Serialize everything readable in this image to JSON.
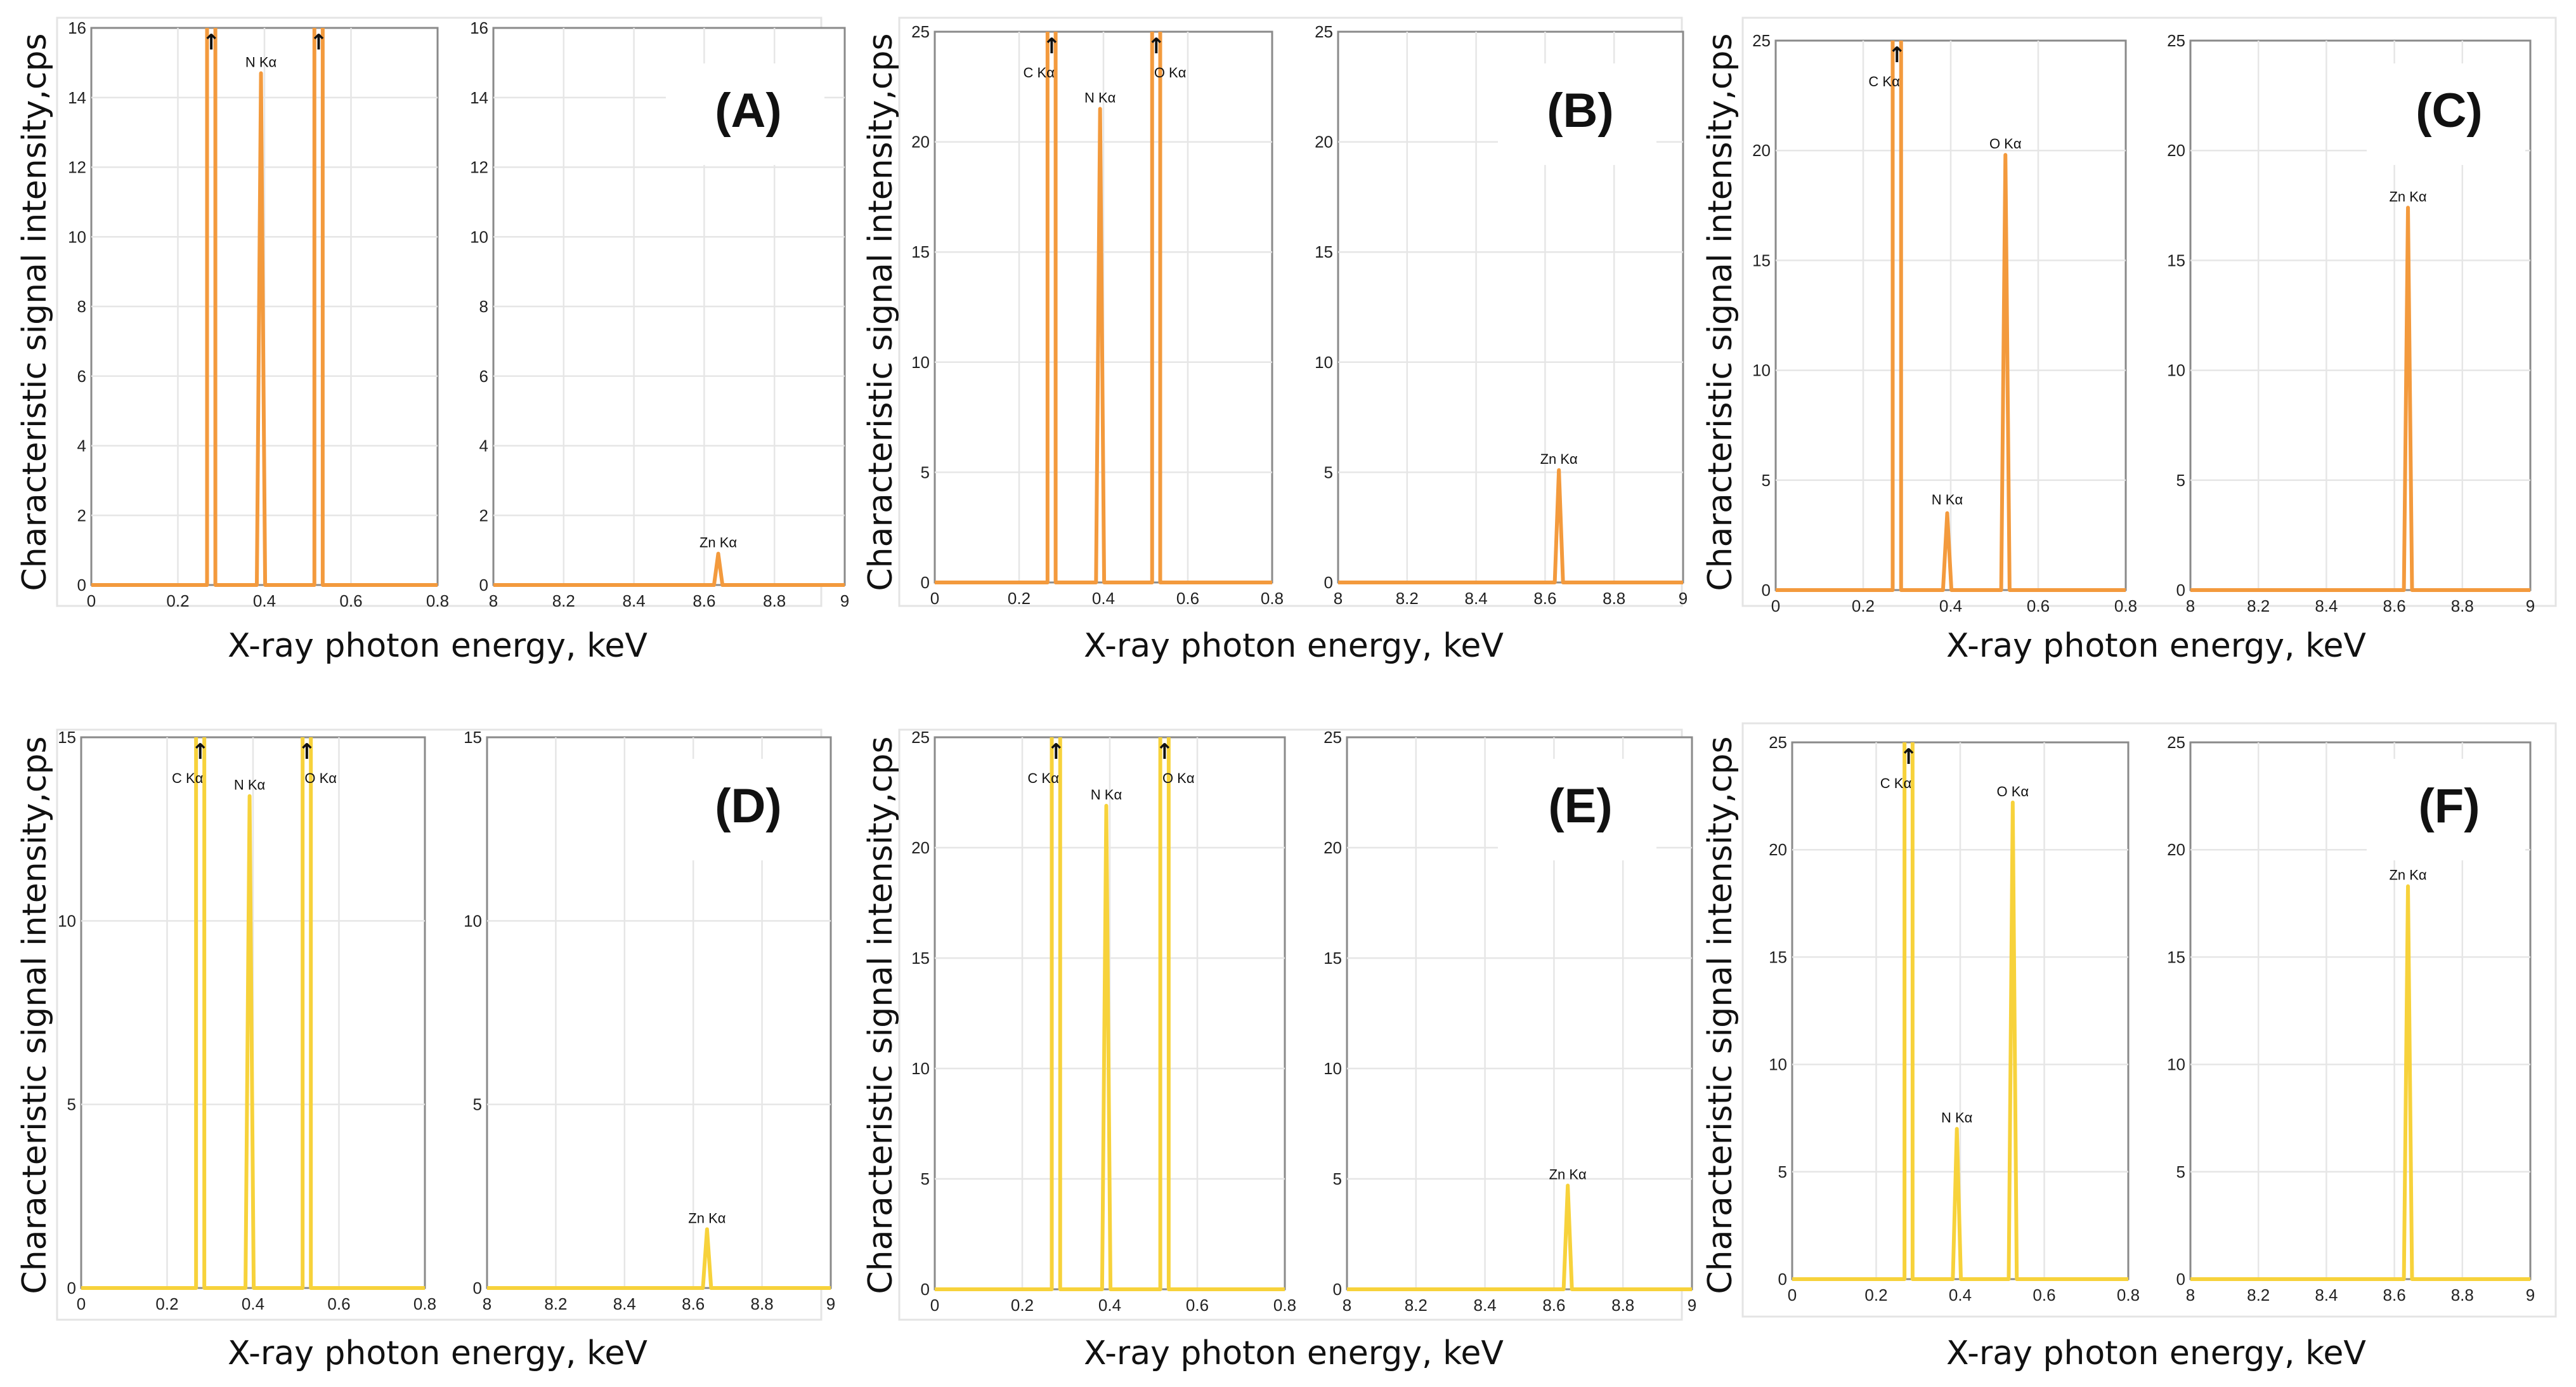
{
  "colors": {
    "orange": "#F39A3D",
    "yellow": "#F7D23B"
  },
  "chart_data": [
    {
      "panel": "(A)",
      "type": "line",
      "color": "#F39A3D",
      "xlabel": "X-ray photon energy, keV",
      "ylabel": "Characteristic signal intensity,cps",
      "left": {
        "xlim": [
          0,
          0.8
        ],
        "ylim": [
          0,
          16
        ],
        "xticks": [
          "0",
          "0.2",
          "0.4",
          "0.6",
          "0.8"
        ],
        "yticks": [
          "0",
          "2",
          "4",
          "6",
          "8",
          "10",
          "12",
          "14",
          "16"
        ],
        "peaks": [
          {
            "x": 0.277,
            "y": 16,
            "label": "",
            "clipped": true
          },
          {
            "x": 0.392,
            "y": 14.7,
            "label": "N Kα",
            "clipped": false
          },
          {
            "x": 0.525,
            "y": 16,
            "label": "",
            "clipped": true
          }
        ]
      },
      "right": {
        "xlim": [
          8,
          9
        ],
        "ylim": [
          0,
          16
        ],
        "xticks": [
          "8",
          "8.2",
          "8.4",
          "8.6",
          "8.8",
          "9"
        ],
        "yticks": [
          "0",
          "2",
          "4",
          "6",
          "8",
          "10",
          "12",
          "14",
          "16"
        ],
        "peaks": [
          {
            "x": 8.64,
            "y": 0.9,
            "label": "Zn Kα",
            "clipped": false
          }
        ]
      }
    },
    {
      "panel": "(B)",
      "type": "line",
      "color": "#F39A3D",
      "xlabel": "X-ray photon energy, keV",
      "ylabel": "Characteristic signal intensity,cps",
      "left": {
        "xlim": [
          0,
          0.8
        ],
        "ylim": [
          0,
          25
        ],
        "xticks": [
          "0",
          "0.2",
          "0.4",
          "0.6",
          "0.8"
        ],
        "yticks": [
          "0",
          "5",
          "10",
          "15",
          "20",
          "25"
        ],
        "peaks": [
          {
            "x": 0.277,
            "y": 25,
            "label": "C Kα",
            "clipped": true
          },
          {
            "x": 0.392,
            "y": 21.5,
            "label": "N Kα",
            "clipped": false
          },
          {
            "x": 0.525,
            "y": 25,
            "label": "O Kα",
            "clipped": true
          }
        ]
      },
      "right": {
        "xlim": [
          8,
          9
        ],
        "ylim": [
          0,
          25
        ],
        "xticks": [
          "8",
          "8.2",
          "8.4",
          "8.6",
          "8.8",
          "9"
        ],
        "yticks": [
          "0",
          "5",
          "10",
          "15",
          "20",
          "25"
        ],
        "peaks": [
          {
            "x": 8.64,
            "y": 5.1,
            "label": "Zn Kα",
            "clipped": false
          }
        ]
      }
    },
    {
      "panel": "(C)",
      "type": "line",
      "color": "#F39A3D",
      "xlabel": "X-ray photon energy, keV",
      "ylabel": "Characteristic signal intensity,cps",
      "left": {
        "xlim": [
          0,
          0.8
        ],
        "ylim": [
          0,
          25
        ],
        "xticks": [
          "0",
          "0.2",
          "0.4",
          "0.6",
          "0.8"
        ],
        "yticks": [
          "0",
          "5",
          "10",
          "15",
          "20",
          "25"
        ],
        "peaks": [
          {
            "x": 0.277,
            "y": 25,
            "label": "C Kα",
            "clipped": true
          },
          {
            "x": 0.392,
            "y": 3.5,
            "label": "N Kα",
            "clipped": false
          },
          {
            "x": 0.525,
            "y": 19.8,
            "label": "O Kα",
            "clipped": false
          }
        ]
      },
      "right": {
        "xlim": [
          8,
          9
        ],
        "ylim": [
          0,
          25
        ],
        "xticks": [
          "8",
          "8.2",
          "8.4",
          "8.6",
          "8.8",
          "9"
        ],
        "yticks": [
          "0",
          "5",
          "10",
          "15",
          "20",
          "25"
        ],
        "peaks": [
          {
            "x": 8.64,
            "y": 17.4,
            "label": "Zn Kα",
            "clipped": false
          }
        ]
      }
    },
    {
      "panel": "(D)",
      "type": "line",
      "color": "#F7D23B",
      "xlabel": "X-ray photon energy, keV",
      "ylabel": "Characteristic signal intensity,cps",
      "left": {
        "xlim": [
          0,
          0.8
        ],
        "ylim": [
          0,
          15
        ],
        "xticks": [
          "0",
          "0.2",
          "0.4",
          "0.6",
          "0.8"
        ],
        "yticks": [
          "0",
          "5",
          "10",
          "15"
        ],
        "peaks": [
          {
            "x": 0.277,
            "y": 15,
            "label": "C Kα",
            "clipped": true
          },
          {
            "x": 0.392,
            "y": 13.4,
            "label": "N Kα",
            "clipped": false
          },
          {
            "x": 0.525,
            "y": 15,
            "label": "O Kα",
            "clipped": true
          }
        ]
      },
      "right": {
        "xlim": [
          8,
          9
        ],
        "ylim": [
          0,
          15
        ],
        "xticks": [
          "8",
          "8.2",
          "8.4",
          "8.6",
          "8.8",
          "9"
        ],
        "yticks": [
          "0",
          "5",
          "10",
          "15"
        ],
        "peaks": [
          {
            "x": 8.64,
            "y": 1.6,
            "label": "Zn Kα",
            "clipped": false
          }
        ]
      }
    },
    {
      "panel": "(E)",
      "type": "line",
      "color": "#F7D23B",
      "xlabel": "X-ray photon energy, keV",
      "ylabel": "Characteristic signal intensity,cps",
      "left": {
        "xlim": [
          0,
          0.8
        ],
        "ylim": [
          0,
          25
        ],
        "xticks": [
          "0",
          "0.2",
          "0.4",
          "0.6",
          "0.8"
        ],
        "yticks": [
          "0",
          "5",
          "10",
          "15",
          "20",
          "25"
        ],
        "peaks": [
          {
            "x": 0.277,
            "y": 25,
            "label": "C Kα",
            "clipped": true
          },
          {
            "x": 0.392,
            "y": 21.9,
            "label": "N Kα",
            "clipped": false
          },
          {
            "x": 0.525,
            "y": 25,
            "label": "O Kα",
            "clipped": true
          }
        ]
      },
      "right": {
        "xlim": [
          8,
          9
        ],
        "ylim": [
          0,
          25
        ],
        "xticks": [
          "8",
          "8.2",
          "8.4",
          "8.6",
          "8.8",
          "9"
        ],
        "yticks": [
          "0",
          "5",
          "10",
          "15",
          "20",
          "25"
        ],
        "peaks": [
          {
            "x": 8.64,
            "y": 4.7,
            "label": "Zn Kα",
            "clipped": false
          }
        ]
      }
    },
    {
      "panel": "(F)",
      "type": "line",
      "color": "#F7D23B",
      "xlabel": "X-ray photon energy, keV",
      "ylabel": "Characteristic signal intensity,cps",
      "left": {
        "xlim": [
          0,
          0.8
        ],
        "ylim": [
          0,
          25
        ],
        "xticks": [
          "0",
          "0.2",
          "0.4",
          "0.6",
          "0.8"
        ],
        "yticks": [
          "0",
          "5",
          "10",
          "15",
          "20",
          "25"
        ],
        "peaks": [
          {
            "x": 0.277,
            "y": 25,
            "label": "C Kα",
            "clipped": true
          },
          {
            "x": 0.392,
            "y": 7.0,
            "label": "N Kα",
            "clipped": false
          },
          {
            "x": 0.525,
            "y": 22.2,
            "label": "O Kα",
            "clipped": false
          }
        ]
      },
      "right": {
        "xlim": [
          8,
          9
        ],
        "ylim": [
          0,
          25
        ],
        "xticks": [
          "8",
          "8.2",
          "8.4",
          "8.6",
          "8.8",
          "9"
        ],
        "yticks": [
          "0",
          "5",
          "10",
          "15",
          "20",
          "25"
        ],
        "peaks": [
          {
            "x": 8.64,
            "y": 18.3,
            "label": "Zn Kα",
            "clipped": false
          }
        ]
      }
    }
  ]
}
